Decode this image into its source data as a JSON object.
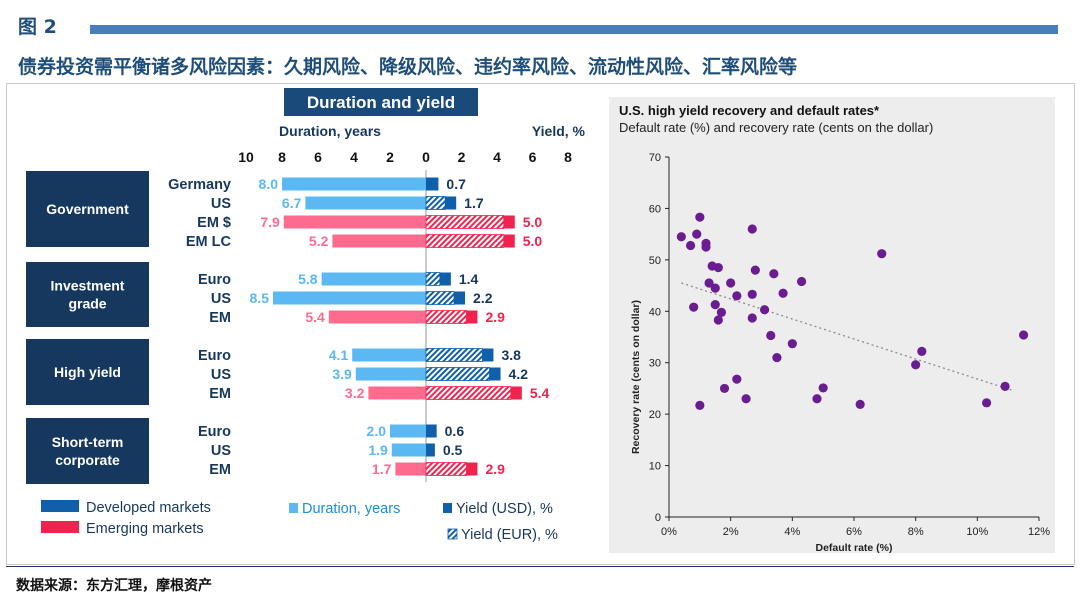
{
  "figure_label": "图 2",
  "subtitle": "债券投资需平衡诸多风险因素：久期风险、降级风险、违约率风险、流动性风险、汇率风险等",
  "source": "数据来源：东方汇理，摩根资产",
  "colors": {
    "developed": "#5bb8f2",
    "developed_dark": "#0f5fab",
    "emerging": "#ff6b8f",
    "emerging_dark": "#f2224e",
    "header_fill": "#1a4a7a",
    "group_box": "#16385e",
    "scatter_point": "#6a1d91",
    "panel_bg": "#ededed"
  },
  "chart_data": [
    {
      "type": "bar",
      "title": "Duration and yield",
      "left_axis_label": "Duration, years",
      "right_axis_label": "Yield, %",
      "left_ticks": [
        "10",
        "8",
        "6",
        "4",
        "2",
        "0"
      ],
      "right_ticks": [
        "2",
        "4",
        "6",
        "8"
      ],
      "duration_range": [
        0,
        10
      ],
      "yield_range": [
        0,
        8
      ],
      "groups": [
        {
          "name": "Government",
          "rows": [
            {
              "label": "Germany",
              "market": "developed",
              "duration": 8.0,
              "duration_label": "8.0",
              "yield": 0.7,
              "yield_label": "0.7",
              "yield_currency": "USD"
            },
            {
              "label": "US",
              "market": "developed",
              "duration": 6.7,
              "duration_label": "6.7",
              "yield": 1.7,
              "yield_label": "1.7",
              "yield_currency": "EUR"
            },
            {
              "label": "EM  $",
              "market": "emerging",
              "duration": 7.9,
              "duration_label": "7.9",
              "yield": 5.0,
              "yield_label": "5.0",
              "yield_currency": "EUR"
            },
            {
              "label": "EM LC",
              "market": "emerging",
              "duration": 5.2,
              "duration_label": "5.2",
              "yield": 5.0,
              "yield_label": "5.0",
              "yield_currency": "EUR"
            }
          ]
        },
        {
          "name": "Investment grade",
          "name_lines": [
            "Investment",
            "grade"
          ],
          "rows": [
            {
              "label": "Euro",
              "market": "developed",
              "duration": 5.8,
              "duration_label": "5.8",
              "yield": 1.4,
              "yield_label": "1.4",
              "yield_currency": "EUR"
            },
            {
              "label": "US",
              "market": "developed",
              "duration": 8.5,
              "duration_label": "8.5",
              "yield": 2.2,
              "yield_label": "2.2",
              "yield_currency": "EUR"
            },
            {
              "label": "EM",
              "market": "emerging",
              "duration": 5.4,
              "duration_label": "5.4",
              "yield": 2.9,
              "yield_label": "2.9",
              "yield_currency": "EUR"
            }
          ]
        },
        {
          "name": "High yield",
          "rows": [
            {
              "label": "Euro",
              "market": "developed",
              "duration": 4.1,
              "duration_label": "4.1",
              "yield": 3.8,
              "yield_label": "3.8",
              "yield_currency": "EUR"
            },
            {
              "label": "US",
              "market": "developed",
              "duration": 3.9,
              "duration_label": "3.9",
              "yield": 4.2,
              "yield_label": "4.2",
              "yield_currency": "EUR"
            },
            {
              "label": "EM",
              "market": "emerging",
              "duration": 3.2,
              "duration_label": "3.2",
              "yield": 5.4,
              "yield_label": "5.4",
              "yield_currency": "EUR"
            }
          ]
        },
        {
          "name": "Short-term corporate",
          "name_lines": [
            "Short-term",
            "corporate"
          ],
          "rows": [
            {
              "label": "Euro",
              "market": "developed",
              "duration": 2.0,
              "duration_label": "2.0",
              "yield": 0.6,
              "yield_label": "0.6",
              "yield_currency": "USD"
            },
            {
              "label": "US",
              "market": "developed",
              "duration": 1.9,
              "duration_label": "1.9",
              "yield": 0.5,
              "yield_label": "0.5",
              "yield_currency": "USD"
            },
            {
              "label": "EM",
              "market": "emerging",
              "duration": 1.7,
              "duration_label": "1.7",
              "yield": 2.9,
              "yield_label": "2.9",
              "yield_currency": "EUR"
            }
          ]
        }
      ],
      "legend": {
        "developed": "Developed markets",
        "emerging": "Emerging markets",
        "duration": "Duration, years",
        "yield_usd": "Yield (USD), %",
        "yield_eur": "Yield (EUR), %"
      }
    },
    {
      "type": "scatter",
      "title": "U.S. high yield recovery and default rates*",
      "subtitle": "Default rate (%) and recovery rate (cents on the dollar)",
      "xlabel": "Default rate (%)",
      "ylabel": "Recovery rate (cents on dollar)",
      "xlim": [
        0,
        12
      ],
      "ylim": [
        0,
        70
      ],
      "xticks": [
        "0%",
        "2%",
        "4%",
        "6%",
        "8%",
        "10%",
        "12%"
      ],
      "yticks": [
        "0",
        "10",
        "20",
        "30",
        "40",
        "50",
        "60",
        "70"
      ],
      "trendline": {
        "style": "dotted",
        "from": [
          0.4,
          45.5
        ],
        "to": [
          11.2,
          24.5
        ]
      },
      "points": [
        [
          0.4,
          54.5
        ],
        [
          0.7,
          52.8
        ],
        [
          0.9,
          55.0
        ],
        [
          1.0,
          58.3
        ],
        [
          1.2,
          53.2
        ],
        [
          1.2,
          52.5
        ],
        [
          0.8,
          40.8
        ],
        [
          1.0,
          21.7
        ],
        [
          1.3,
          45.5
        ],
        [
          1.4,
          48.8
        ],
        [
          1.5,
          41.3
        ],
        [
          1.5,
          44.5
        ],
        [
          1.6,
          48.5
        ],
        [
          1.6,
          38.3
        ],
        [
          1.7,
          39.8
        ],
        [
          1.8,
          25.0
        ],
        [
          2.0,
          45.5
        ],
        [
          2.2,
          43.0
        ],
        [
          2.2,
          26.8
        ],
        [
          2.5,
          23.0
        ],
        [
          2.7,
          56.0
        ],
        [
          2.8,
          48.0
        ],
        [
          2.7,
          43.3
        ],
        [
          2.7,
          38.7
        ],
        [
          3.1,
          40.3
        ],
        [
          3.3,
          35.3
        ],
        [
          3.4,
          47.3
        ],
        [
          3.5,
          31.0
        ],
        [
          3.7,
          43.5
        ],
        [
          4.0,
          33.7
        ],
        [
          4.3,
          45.8
        ],
        [
          4.8,
          23.0
        ],
        [
          5.0,
          25.1
        ],
        [
          6.2,
          21.9
        ],
        [
          6.9,
          51.2
        ],
        [
          8.0,
          29.6
        ],
        [
          8.2,
          32.2
        ],
        [
          10.3,
          22.2
        ],
        [
          10.9,
          25.4
        ],
        [
          11.5,
          35.4
        ]
      ]
    }
  ]
}
